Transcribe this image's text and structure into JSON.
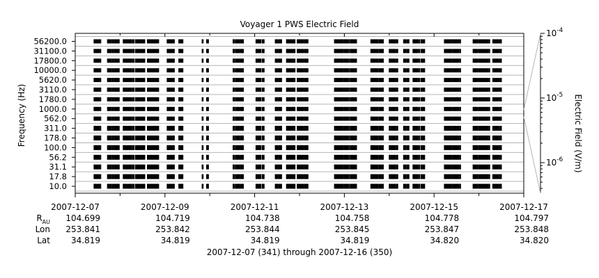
{
  "chart_data": {
    "type": "bar",
    "title": "Voyager 1 PWS Electric Field",
    "ylabel": "Frequency (Hz)",
    "y_ticks": [
      "10.0",
      "17.8",
      "31.1",
      "56.2",
      "100.0",
      "178.0",
      "311.0",
      "562.0",
      "1000.0",
      "1780.0",
      "3110.0",
      "5620.0",
      "10000.0",
      "17800.0",
      "31100.0",
      "56200.0"
    ],
    "x_range_days": [
      "2007-12-07",
      "2007-12-17"
    ],
    "x_ticks": [
      "2007-12-07",
      "2007-12-09",
      "2007-12-11",
      "2007-12-13",
      "2007-12-15",
      "2007-12-17"
    ],
    "colorbar": {
      "label": "Electric Field (V/m)",
      "ticks": [
        {
          "base": "10",
          "exp": "-4",
          "value": 0.0001
        },
        {
          "base": "10",
          "exp": "-5",
          "value": 1e-05
        },
        {
          "base": "10",
          "exp": "-6",
          "value": 1e-06
        }
      ]
    },
    "ephemeris": {
      "rows": [
        {
          "label": "R",
          "sub": "AU",
          "values": [
            "104.699",
            "104.719",
            "104.738",
            "104.758",
            "104.778",
            "104.797"
          ]
        },
        {
          "label": "Lon",
          "values": [
            "253.841",
            "253.842",
            "253.844",
            "253.845",
            "253.847",
            "253.848"
          ]
        },
        {
          "label": "Lat",
          "values": [
            "34.819",
            "34.819",
            "34.819",
            "34.819",
            "34.820",
            "34.820"
          ]
        }
      ]
    },
    "footer": "2007-12-07 (341) through 2007-12-16 (350)",
    "coverage_segments_days": [
      [
        0.41,
        0.55
      ],
      [
        0.55,
        0.58
      ],
      [
        0.71,
        0.82
      ],
      [
        0.82,
        0.86
      ],
      [
        0.86,
        0.99
      ],
      [
        1.06,
        1.27
      ],
      [
        1.27,
        1.32
      ],
      [
        1.33,
        1.56
      ],
      [
        1.6,
        1.87
      ],
      [
        2.04,
        2.12
      ],
      [
        2.12,
        2.22
      ],
      [
        2.3,
        2.36
      ],
      [
        2.36,
        2.41
      ],
      [
        2.82,
        2.86
      ],
      [
        2.92,
        2.98
      ],
      [
        3.51,
        3.56
      ],
      [
        3.56,
        3.67
      ],
      [
        3.67,
        3.76
      ],
      [
        4.02,
        4.15
      ],
      [
        4.16,
        4.22
      ],
      [
        4.45,
        4.53
      ],
      [
        4.53,
        4.61
      ],
      [
        4.7,
        4.86
      ],
      [
        4.86,
        4.91
      ],
      [
        4.94,
        5.1
      ],
      [
        5.1,
        5.2
      ],
      [
        5.77,
        5.98
      ],
      [
        5.98,
        6.1
      ],
      [
        6.1,
        6.13
      ],
      [
        6.13,
        6.28
      ],
      [
        6.58,
        6.73
      ],
      [
        6.73,
        6.76
      ],
      [
        6.76,
        6.88
      ],
      [
        6.99,
        7.03
      ],
      [
        7.03,
        7.15
      ],
      [
        7.15,
        7.2
      ],
      [
        7.31,
        7.38
      ],
      [
        7.38,
        7.45
      ],
      [
        7.52,
        7.65
      ],
      [
        7.65,
        7.69
      ],
      [
        7.7,
        7.8
      ],
      [
        8.22,
        8.37
      ],
      [
        8.37,
        8.41
      ],
      [
        8.41,
        8.56
      ],
      [
        8.56,
        8.6
      ],
      [
        8.86,
        8.98
      ],
      [
        8.98,
        9.03
      ],
      [
        9.03,
        9.21
      ],
      [
        9.21,
        9.25
      ],
      [
        9.3,
        9.45
      ],
      [
        9.45,
        9.51
      ]
    ]
  }
}
